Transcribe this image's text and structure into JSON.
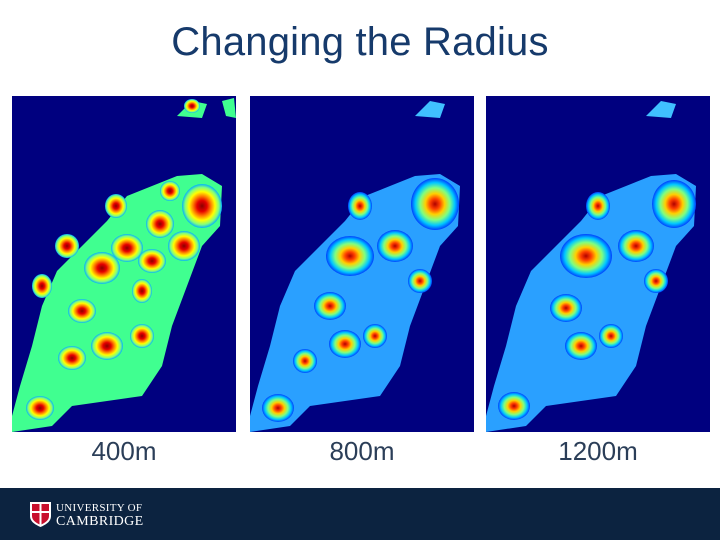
{
  "slide": {
    "title": "Changing the Radius"
  },
  "panels": [
    {
      "id": "p400",
      "caption": "400m",
      "palette": [
        "#00b0ff",
        "#7fff7f",
        "#ffff00",
        "#ff7f00",
        "#e60000",
        "#8b0000"
      ]
    },
    {
      "id": "p800",
      "caption": "800m",
      "palette": [
        "#0040ff",
        "#00c8ff",
        "#80ff80",
        "#ffd000",
        "#ff4000",
        "#b00000"
      ]
    },
    {
      "id": "p1200",
      "caption": "1200m",
      "palette": [
        "#0040ff",
        "#00c8ff",
        "#80ff80",
        "#ffd000",
        "#ff4000",
        "#b00000"
      ]
    }
  ],
  "footer": {
    "logo_line1": "UNIVERSITY OF",
    "logo_line2": "CAMBRIDGE"
  }
}
